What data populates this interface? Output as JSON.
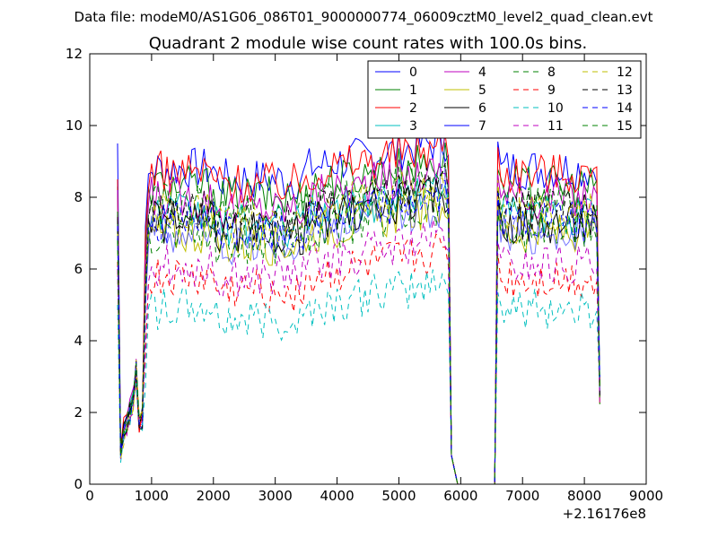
{
  "header": {
    "data_file": "Data file: modeM0/AS1G06_086T01_9000000774_06009cztM0_level2_quad_clean.evt"
  },
  "chart_data": {
    "type": "line",
    "title": "Quadrant 2 module wise count rates with 100.0s bins.",
    "xlabel": "",
    "ylabel": "",
    "x_offset_label": "+2.16176e8",
    "xlim": [
      0,
      9000
    ],
    "ylim": [
      0,
      12
    ],
    "x_ticks": [
      0,
      1000,
      2000,
      3000,
      4000,
      5000,
      6000,
      7000,
      8000,
      9000
    ],
    "y_ticks": [
      0,
      2,
      4,
      6,
      8,
      10,
      12
    ],
    "grid": false,
    "legend_placement": "top-right",
    "series": [
      {
        "name": "0",
        "color": "#0000ff",
        "dash": "solid",
        "level": 8.8,
        "base": 9.5,
        "dip": 1.0
      },
      {
        "name": "1",
        "color": "#008000",
        "dash": "solid",
        "level": 8.3,
        "base": 8.3,
        "dip": 1.0
      },
      {
        "name": "2",
        "color": "#ff0000",
        "dash": "solid",
        "level": 8.7,
        "base": 8.5,
        "dip": 1.0
      },
      {
        "name": "3",
        "color": "#00bfbf",
        "dash": "solid",
        "level": 7.5,
        "base": 7.6,
        "dip": 0.9
      },
      {
        "name": "4",
        "color": "#bf00bf",
        "dash": "solid",
        "level": 8.0,
        "base": 8.2,
        "dip": 0.9
      },
      {
        "name": "5",
        "color": "#bfbf00",
        "dash": "solid",
        "level": 7.0,
        "base": 7.2,
        "dip": 0.8
      },
      {
        "name": "6",
        "color": "#000000",
        "dash": "solid",
        "level": 7.3,
        "base": 7.5,
        "dip": 0.9
      },
      {
        "name": "7",
        "color": "#0000ff",
        "dash": "solid",
        "level": 7.0,
        "base": 7.4,
        "dip": 0.9
      },
      {
        "name": "8",
        "color": "#008000",
        "dash": "dashed",
        "level": 7.8,
        "base": 7.6,
        "dip": 0.9
      },
      {
        "name": "9",
        "color": "#ff0000",
        "dash": "dashed",
        "level": 5.7,
        "base": 6.2,
        "dip": 0.8
      },
      {
        "name": "10",
        "color": "#00bfbf",
        "dash": "dashed",
        "level": 4.9,
        "base": 5.0,
        "dip": 0.6
      },
      {
        "name": "11",
        "color": "#bf00bf",
        "dash": "dashed",
        "level": 6.1,
        "base": 6.0,
        "dip": 0.7
      },
      {
        "name": "12",
        "color": "#bfbf00",
        "dash": "dashed",
        "level": 7.6,
        "base": 7.0,
        "dip": 0.7
      },
      {
        "name": "13",
        "color": "#000000",
        "dash": "dashed",
        "level": 7.6,
        "base": 7.4,
        "dip": 0.8
      },
      {
        "name": "14",
        "color": "#0000ff",
        "dash": "dashed",
        "level": 7.3,
        "base": 7.2,
        "dip": 0.8
      },
      {
        "name": "15",
        "color": "#008000",
        "dash": "dashed",
        "level": 7.0,
        "base": 6.8,
        "dip": 0.8
      }
    ],
    "segments": [
      {
        "x_start": 450,
        "x_end": 5800,
        "step": 50
      },
      {
        "x_start": 5850,
        "x_end": 6550,
        "values_zero": true
      },
      {
        "x_start": 6600,
        "x_end": 8250,
        "step": 50
      }
    ]
  }
}
